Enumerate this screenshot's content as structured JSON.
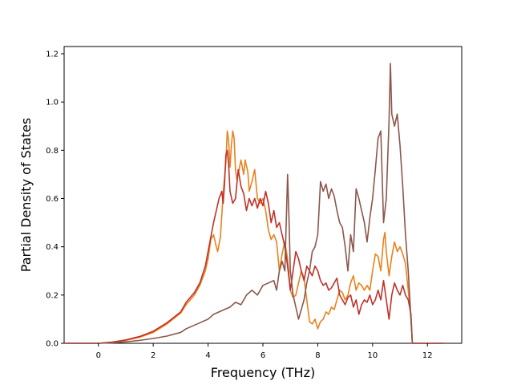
{
  "chart_data": {
    "type": "line",
    "title": "",
    "xlabel": "Frequency (THz)",
    "ylabel": "Partial Density of States",
    "xlim": [
      -1.25,
      13.25
    ],
    "ylim": [
      0.0,
      1.23
    ],
    "xticks": [
      0,
      2,
      4,
      6,
      8,
      10,
      12
    ],
    "yticks": [
      0.0,
      0.2,
      0.4,
      0.6,
      0.8,
      1.0,
      1.2
    ],
    "xtick_labels": [
      "0",
      "2",
      "4",
      "6",
      "8",
      "10",
      "12"
    ],
    "ytick_labels": [
      "0.0",
      "0.2",
      "0.4",
      "0.6",
      "0.8",
      "1.0",
      "1.2"
    ],
    "grid": false,
    "legend": "none",
    "series": [
      {
        "color": "#e8821e",
        "points": [
          [
            -1.2,
            0
          ],
          [
            0,
            0
          ],
          [
            0.5,
            0.005
          ],
          [
            1,
            0.012
          ],
          [
            1.5,
            0.025
          ],
          [
            2,
            0.045
          ],
          [
            2.5,
            0.08
          ],
          [
            3,
            0.125
          ],
          [
            3.2,
            0.16
          ],
          [
            3.5,
            0.2
          ],
          [
            3.7,
            0.24
          ],
          [
            3.9,
            0.3
          ],
          [
            4,
            0.35
          ],
          [
            4.1,
            0.43
          ],
          [
            4.2,
            0.45
          ],
          [
            4.3,
            0.4
          ],
          [
            4.35,
            0.38
          ],
          [
            4.45,
            0.44
          ],
          [
            4.55,
            0.62
          ],
          [
            4.65,
            0.75
          ],
          [
            4.7,
            0.88
          ],
          [
            4.75,
            0.84
          ],
          [
            4.8,
            0.73
          ],
          [
            4.85,
            0.82
          ],
          [
            4.9,
            0.88
          ],
          [
            4.95,
            0.85
          ],
          [
            5.0,
            0.72
          ],
          [
            5.05,
            0.68
          ],
          [
            5.1,
            0.7
          ],
          [
            5.2,
            0.76
          ],
          [
            5.3,
            0.7
          ],
          [
            5.35,
            0.76
          ],
          [
            5.45,
            0.71
          ],
          [
            5.5,
            0.63
          ],
          [
            5.6,
            0.67
          ],
          [
            5.7,
            0.72
          ],
          [
            5.8,
            0.6
          ],
          [
            5.9,
            0.58
          ],
          [
            6.0,
            0.6
          ],
          [
            6.1,
            0.55
          ],
          [
            6.2,
            0.47
          ],
          [
            6.3,
            0.43
          ],
          [
            6.4,
            0.45
          ],
          [
            6.5,
            0.42
          ],
          [
            6.6,
            0.3
          ],
          [
            6.7,
            0.37
          ],
          [
            6.8,
            0.42
          ],
          [
            6.9,
            0.35
          ],
          [
            7.0,
            0.22
          ],
          [
            7.1,
            0.19
          ],
          [
            7.2,
            0.2
          ],
          [
            7.3,
            0.25
          ],
          [
            7.4,
            0.3
          ],
          [
            7.5,
            0.27
          ],
          [
            7.6,
            0.18
          ],
          [
            7.7,
            0.09
          ],
          [
            7.8,
            0.08
          ],
          [
            7.9,
            0.1
          ],
          [
            8.0,
            0.06
          ],
          [
            8.1,
            0.09
          ],
          [
            8.2,
            0.1
          ],
          [
            8.3,
            0.13
          ],
          [
            8.4,
            0.12
          ],
          [
            8.5,
            0.15
          ],
          [
            8.6,
            0.14
          ],
          [
            8.7,
            0.18
          ],
          [
            8.8,
            0.22
          ],
          [
            8.9,
            0.21
          ],
          [
            9.0,
            0.18
          ],
          [
            9.1,
            0.2
          ],
          [
            9.2,
            0.25
          ],
          [
            9.3,
            0.28
          ],
          [
            9.4,
            0.22
          ],
          [
            9.5,
            0.25
          ],
          [
            9.6,
            0.24
          ],
          [
            9.7,
            0.22
          ],
          [
            9.8,
            0.24
          ],
          [
            9.9,
            0.22
          ],
          [
            10.0,
            0.3
          ],
          [
            10.1,
            0.37
          ],
          [
            10.2,
            0.36
          ],
          [
            10.3,
            0.3
          ],
          [
            10.4,
            0.43
          ],
          [
            10.45,
            0.46
          ],
          [
            10.5,
            0.38
          ],
          [
            10.6,
            0.28
          ],
          [
            10.7,
            0.36
          ],
          [
            10.8,
            0.42
          ],
          [
            10.9,
            0.38
          ],
          [
            11.0,
            0.4
          ],
          [
            11.1,
            0.37
          ],
          [
            11.2,
            0.33
          ],
          [
            11.3,
            0.22
          ],
          [
            11.4,
            0.1
          ],
          [
            11.45,
            0.0
          ],
          [
            11.5,
            0.0
          ],
          [
            12.6,
            0.0
          ]
        ]
      },
      {
        "color": "#c0322a",
        "points": [
          [
            -1.2,
            0
          ],
          [
            0,
            0
          ],
          [
            0.5,
            0.005
          ],
          [
            1,
            0.014
          ],
          [
            1.5,
            0.028
          ],
          [
            2,
            0.05
          ],
          [
            2.5,
            0.085
          ],
          [
            3,
            0.13
          ],
          [
            3.2,
            0.17
          ],
          [
            3.5,
            0.21
          ],
          [
            3.7,
            0.25
          ],
          [
            3.9,
            0.32
          ],
          [
            4.0,
            0.38
          ],
          [
            4.1,
            0.44
          ],
          [
            4.2,
            0.5
          ],
          [
            4.3,
            0.55
          ],
          [
            4.4,
            0.6
          ],
          [
            4.5,
            0.63
          ],
          [
            4.55,
            0.58
          ],
          [
            4.6,
            0.66
          ],
          [
            4.65,
            0.78
          ],
          [
            4.7,
            0.8
          ],
          [
            4.75,
            0.74
          ],
          [
            4.8,
            0.63
          ],
          [
            4.9,
            0.58
          ],
          [
            5.0,
            0.6
          ],
          [
            5.1,
            0.72
          ],
          [
            5.2,
            0.65
          ],
          [
            5.3,
            0.62
          ],
          [
            5.4,
            0.55
          ],
          [
            5.5,
            0.6
          ],
          [
            5.6,
            0.57
          ],
          [
            5.7,
            0.6
          ],
          [
            5.8,
            0.56
          ],
          [
            5.9,
            0.6
          ],
          [
            6.0,
            0.57
          ],
          [
            6.1,
            0.63
          ],
          [
            6.2,
            0.58
          ],
          [
            6.3,
            0.5
          ],
          [
            6.4,
            0.55
          ],
          [
            6.5,
            0.48
          ],
          [
            6.6,
            0.5
          ],
          [
            6.7,
            0.45
          ],
          [
            6.8,
            0.4
          ],
          [
            6.9,
            0.32
          ],
          [
            7.0,
            0.22
          ],
          [
            7.1,
            0.3
          ],
          [
            7.2,
            0.38
          ],
          [
            7.3,
            0.35
          ],
          [
            7.4,
            0.3
          ],
          [
            7.5,
            0.26
          ],
          [
            7.6,
            0.32
          ],
          [
            7.7,
            0.3
          ],
          [
            7.8,
            0.28
          ],
          [
            7.9,
            0.32
          ],
          [
            8.0,
            0.3
          ],
          [
            8.1,
            0.26
          ],
          [
            8.2,
            0.24
          ],
          [
            8.3,
            0.25
          ],
          [
            8.4,
            0.22
          ],
          [
            8.5,
            0.23
          ],
          [
            8.6,
            0.25
          ],
          [
            8.7,
            0.27
          ],
          [
            8.8,
            0.2
          ],
          [
            8.9,
            0.18
          ],
          [
            9.0,
            0.16
          ],
          [
            9.1,
            0.19
          ],
          [
            9.2,
            0.2
          ],
          [
            9.3,
            0.15
          ],
          [
            9.4,
            0.18
          ],
          [
            9.5,
            0.12
          ],
          [
            9.6,
            0.16
          ],
          [
            9.7,
            0.18
          ],
          [
            9.8,
            0.17
          ],
          [
            9.9,
            0.2
          ],
          [
            10.0,
            0.16
          ],
          [
            10.1,
            0.18
          ],
          [
            10.2,
            0.22
          ],
          [
            10.3,
            0.18
          ],
          [
            10.4,
            0.26
          ],
          [
            10.5,
            0.18
          ],
          [
            10.6,
            0.1
          ],
          [
            10.7,
            0.2
          ],
          [
            10.8,
            0.25
          ],
          [
            10.9,
            0.22
          ],
          [
            11.0,
            0.2
          ],
          [
            11.1,
            0.24
          ],
          [
            11.2,
            0.2
          ],
          [
            11.3,
            0.18
          ],
          [
            11.4,
            0.12
          ],
          [
            11.45,
            0.0
          ],
          [
            11.5,
            0.0
          ],
          [
            12.6,
            0.0
          ]
        ]
      },
      {
        "color": "#8c564b",
        "points": [
          [
            -1.2,
            0
          ],
          [
            0,
            0
          ],
          [
            0.5,
            0.002
          ],
          [
            1,
            0.006
          ],
          [
            1.5,
            0.012
          ],
          [
            2,
            0.02
          ],
          [
            2.5,
            0.03
          ],
          [
            3,
            0.045
          ],
          [
            3.2,
            0.06
          ],
          [
            3.5,
            0.075
          ],
          [
            3.7,
            0.085
          ],
          [
            4.0,
            0.1
          ],
          [
            4.2,
            0.12
          ],
          [
            4.4,
            0.13
          ],
          [
            4.6,
            0.14
          ],
          [
            4.8,
            0.15
          ],
          [
            5.0,
            0.17
          ],
          [
            5.2,
            0.16
          ],
          [
            5.4,
            0.2
          ],
          [
            5.6,
            0.22
          ],
          [
            5.8,
            0.2
          ],
          [
            6.0,
            0.24
          ],
          [
            6.2,
            0.25
          ],
          [
            6.4,
            0.26
          ],
          [
            6.5,
            0.22
          ],
          [
            6.6,
            0.3
          ],
          [
            6.7,
            0.34
          ],
          [
            6.8,
            0.3
          ],
          [
            6.9,
            0.7
          ],
          [
            6.95,
            0.52
          ],
          [
            7.0,
            0.3
          ],
          [
            7.1,
            0.2
          ],
          [
            7.2,
            0.15
          ],
          [
            7.3,
            0.1
          ],
          [
            7.4,
            0.14
          ],
          [
            7.5,
            0.18
          ],
          [
            7.6,
            0.25
          ],
          [
            7.7,
            0.3
          ],
          [
            7.8,
            0.38
          ],
          [
            7.9,
            0.4
          ],
          [
            8.0,
            0.45
          ],
          [
            8.1,
            0.67
          ],
          [
            8.2,
            0.63
          ],
          [
            8.3,
            0.66
          ],
          [
            8.4,
            0.6
          ],
          [
            8.5,
            0.64
          ],
          [
            8.6,
            0.61
          ],
          [
            8.7,
            0.55
          ],
          [
            8.8,
            0.5
          ],
          [
            8.9,
            0.48
          ],
          [
            9.0,
            0.4
          ],
          [
            9.1,
            0.3
          ],
          [
            9.2,
            0.45
          ],
          [
            9.3,
            0.38
          ],
          [
            9.4,
            0.64
          ],
          [
            9.5,
            0.6
          ],
          [
            9.6,
            0.55
          ],
          [
            9.7,
            0.5
          ],
          [
            9.8,
            0.42
          ],
          [
            9.9,
            0.52
          ],
          [
            10.0,
            0.6
          ],
          [
            10.1,
            0.72
          ],
          [
            10.2,
            0.85
          ],
          [
            10.3,
            0.88
          ],
          [
            10.4,
            0.5
          ],
          [
            10.5,
            0.6
          ],
          [
            10.6,
            0.92
          ],
          [
            10.65,
            1.16
          ],
          [
            10.7,
            0.95
          ],
          [
            10.8,
            0.9
          ],
          [
            10.9,
            0.95
          ],
          [
            11.0,
            0.82
          ],
          [
            11.1,
            0.65
          ],
          [
            11.2,
            0.45
          ],
          [
            11.3,
            0.3
          ],
          [
            11.4,
            0.1
          ],
          [
            11.45,
            0.0
          ],
          [
            11.5,
            0.0
          ],
          [
            12.6,
            0.0
          ]
        ]
      }
    ]
  }
}
